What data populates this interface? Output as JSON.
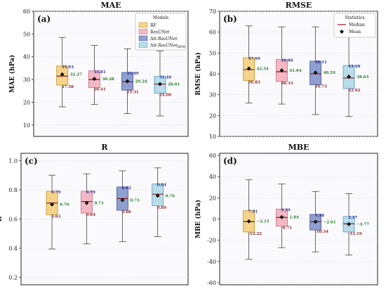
{
  "legend_models": {
    "title": "Models",
    "entries": [
      {
        "label": "RF",
        "color": "#f5d48a"
      },
      {
        "label": "ResUNet",
        "color": "#f4b8c4"
      },
      {
        "label": "Att-ResUNet",
        "color": "#8e9fd0"
      },
      {
        "label": "Att-ResUNet",
        "sub": "DEM",
        "color": "#b8dcea"
      }
    ]
  },
  "legend_stats": {
    "title": "Statistics",
    "median_label": "Median",
    "mean_label": "Mean"
  },
  "styles": {
    "edge_colors": [
      "#c49a3a",
      "#c97a8a",
      "#5566a0",
      "#6aa0bf"
    ],
    "hi_color": "#2b2d8a",
    "lo_color": "#8b1a1a",
    "mean_label_color": "#1f7a1f",
    "median_color": "#8b1a1a"
  },
  "chart_data": [
    {
      "panel": "(a)",
      "title": "MAE",
      "type": "box",
      "ylabel": "MAE (hPa)",
      "ylim": [
        5,
        60
      ],
      "yticks": [
        10,
        20,
        30,
        40,
        50,
        60
      ],
      "boxes": [
        {
          "whislo": 18,
          "q1": 27.58,
          "med": 31.5,
          "q3": 35.93,
          "whishi": 48.5,
          "mean": 32.27,
          "hi_label": "35.93",
          "lo_label": "27.58",
          "mean_label": "32.27"
        },
        {
          "whislo": 19,
          "q1": 26.41,
          "med": 30.0,
          "q3": 33.81,
          "whishi": 45,
          "mean": 30.28,
          "hi_label": "33.81",
          "lo_label": "26.41",
          "mean_label": "30.28"
        },
        {
          "whislo": 15,
          "q1": 25.31,
          "med": 29.0,
          "q3": 33.09,
          "whishi": 43.5,
          "mean": 29.24,
          "hi_label": "33.09",
          "lo_label": "25.31",
          "mean_label": "29.24"
        },
        {
          "whislo": 14,
          "q1": 24.0,
          "med": 28.0,
          "q3": 31.4,
          "whishi": 42.5,
          "mean": 28.01,
          "hi_label": "31.40",
          "lo_label": "24.00",
          "mean_label": "28.01"
        }
      ]
    },
    {
      "panel": "(b)",
      "title": "RMSE",
      "type": "box",
      "ylabel": "RMSE (hPa)",
      "ylim": [
        10,
        70
      ],
      "yticks": [
        10,
        20,
        30,
        40,
        50,
        60,
        70
      ],
      "boxes": [
        {
          "whislo": 26,
          "q1": 36.83,
          "med": 42.0,
          "q3": 47.69,
          "whishi": 63,
          "mean": 42.54,
          "hi_label": "47.69",
          "lo_label": "36.83",
          "mean_label": "42.54"
        },
        {
          "whislo": 25.5,
          "q1": 36.33,
          "med": 41.0,
          "q3": 46.86,
          "whishi": 62.5,
          "mean": 41.64,
          "hi_label": "46.86",
          "lo_label": "36.33",
          "mean_label": "41.64"
        },
        {
          "whislo": 20.5,
          "q1": 34.73,
          "med": 40.0,
          "q3": 46.11,
          "whishi": 62.5,
          "mean": 40.59,
          "hi_label": "46.11",
          "lo_label": "34.73",
          "mean_label": "40.59"
        },
        {
          "whislo": 19.5,
          "q1": 32.92,
          "med": 38.0,
          "q3": 43.98,
          "whishi": 60,
          "mean": 38.63,
          "hi_label": "43.98",
          "lo_label": "32.92",
          "mean_label": "38.63"
        }
      ]
    },
    {
      "panel": "(c)",
      "title": "R",
      "type": "box",
      "ylabel": "R",
      "ylim": [
        0.15,
        1.05
      ],
      "yticks": [
        0.2,
        0.4,
        0.6,
        0.8,
        1.0
      ],
      "boxes": [
        {
          "whislo": 0.395,
          "q1": 0.63,
          "med": 0.71,
          "q3": 0.79,
          "whishi": 0.9,
          "mean": 0.7,
          "hi_label": "0.79",
          "lo_label": "0.63",
          "mean_label": "0.70"
        },
        {
          "whislo": 0.43,
          "q1": 0.64,
          "med": 0.72,
          "q3": 0.79,
          "whishi": 0.91,
          "mean": 0.71,
          "hi_label": "0.79",
          "lo_label": "0.64",
          "mean_label": "0.71"
        },
        {
          "whislo": 0.445,
          "q1": 0.66,
          "med": 0.74,
          "q3": 0.82,
          "whishi": 0.93,
          "mean": 0.73,
          "hi_label": "0.82",
          "lo_label": "0.66",
          "mean_label": "0.73"
        },
        {
          "whislo": 0.48,
          "q1": 0.69,
          "med": 0.77,
          "q3": 0.84,
          "whishi": 0.95,
          "mean": 0.76,
          "hi_label": "0.84",
          "lo_label": "0.69",
          "mean_label": "0.76"
        }
      ]
    },
    {
      "panel": "(d)",
      "title": "MBE",
      "type": "box",
      "ylabel": "MBE (hPa)",
      "ylim": [
        -62,
        62
      ],
      "yticks": [
        -60,
        -40,
        -20,
        0,
        20,
        40,
        60
      ],
      "boxes": [
        {
          "whislo": -38,
          "q1": -12.22,
          "med": -2.5,
          "q3": 7.91,
          "whishi": 37,
          "mean": -2.15,
          "hi_label": "7.91",
          "lo_label": "-12.22",
          "mean_label": "−2.15"
        },
        {
          "whislo": -27,
          "q1": -6.71,
          "med": 1.5,
          "q3": 9.39,
          "whishi": 33,
          "mean": 1.84,
          "hi_label": "9.39",
          "lo_label": "-6.71",
          "mean_label": "1.84"
        },
        {
          "whislo": -31,
          "q1": -10.34,
          "med": -2.5,
          "q3": 4.38,
          "whishi": 26,
          "mean": -2.61,
          "hi_label": "4.38",
          "lo_label": "-10.34",
          "mean_label": "−2.61"
        },
        {
          "whislo": -34,
          "q1": -12.19,
          "med": -4.5,
          "q3": 2.37,
          "whishi": 24,
          "mean": -4.77,
          "hi_label": "2.37",
          "lo_label": "-12.19",
          "mean_label": "−4.77"
        }
      ]
    }
  ]
}
